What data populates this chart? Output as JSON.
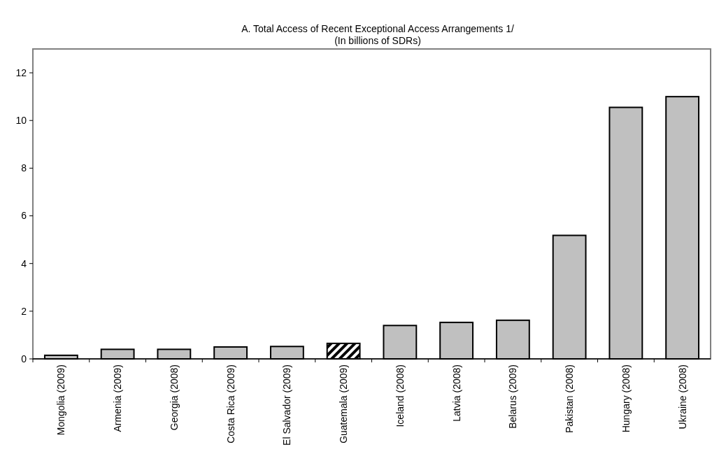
{
  "chart_data": {
    "type": "bar",
    "title": "A. Total Access of Recent Exceptional Access Arrangements 1/",
    "subtitle": "(In billions of SDRs)",
    "categories": [
      "Mongolia (2009)",
      "Armenia (2009)",
      "Georgia (2008)",
      "Costa Rica (2009)",
      "El Salvador (2009)",
      "Guatemala (2009)",
      "Iceland (2008)",
      "Latvia (2008)",
      "Belarus (2009)",
      "Pakistan (2008)",
      "Hungary (2008)",
      "Ukraine (2008)"
    ],
    "values": [
      0.15,
      0.4,
      0.4,
      0.5,
      0.52,
      0.65,
      1.4,
      1.53,
      1.62,
      5.18,
      10.55,
      11.0
    ],
    "colors": [
      "#c0c0c0",
      "#c0c0c0",
      "#c0c0c0",
      "#c0c0c0",
      "#c0c0c0",
      "#000000",
      "#c0c0c0",
      "#c0c0c0",
      "#c0c0c0",
      "#c0c0c0",
      "#c0c0c0",
      "#c0c0c0"
    ],
    "ylim": [
      0,
      13
    ],
    "yticks": [
      0,
      2,
      4,
      6,
      8,
      10,
      12
    ],
    "grid": false
  }
}
